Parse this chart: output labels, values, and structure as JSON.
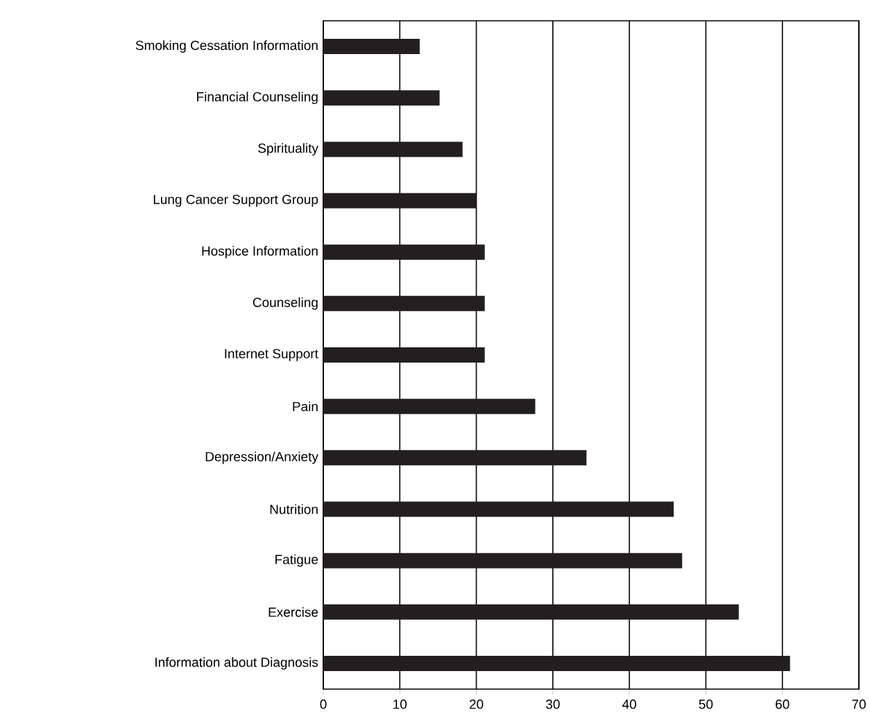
{
  "chart_data": {
    "type": "bar",
    "orientation": "horizontal",
    "categories": [
      "Smoking Cessation Information",
      "Financial Counseling",
      "Spirituality",
      "Lung Cancer Support Group",
      "Hospice Information",
      "Counseling",
      "Internet Support",
      "Pain",
      "Depression/Anxiety",
      "Nutrition",
      "Fatigue",
      "Exercise",
      "Information about Diagnosis"
    ],
    "values": [
      12.6,
      15.2,
      18.2,
      20.0,
      21.1,
      21.1,
      21.1,
      27.7,
      34.4,
      45.8,
      46.9,
      54.3,
      61.0
    ],
    "color": "#231f20",
    "xlim": [
      0,
      70
    ],
    "xticks": [
      0,
      10,
      20,
      30,
      40,
      50,
      60,
      70
    ],
    "grid": "x"
  }
}
